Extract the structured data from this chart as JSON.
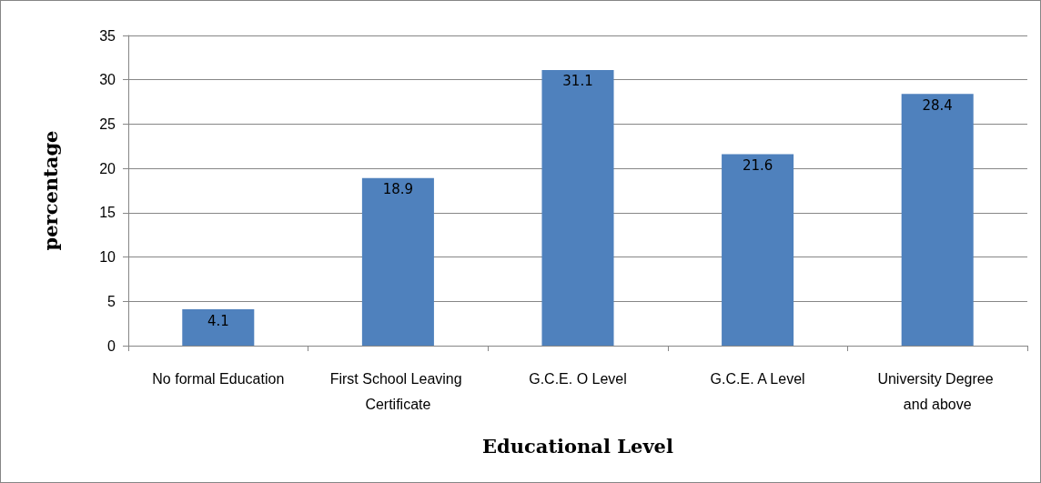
{
  "chart_data": {
    "type": "bar",
    "xlabel": "Educational Level",
    "ylabel": "percentage",
    "categories": [
      "No formal Education",
      "First School Leaving Certificate",
      "G.C.E. O Level",
      "G.C.E. A Level",
      "University Degree and above"
    ],
    "values": [
      4.1,
      18.9,
      31.1,
      21.6,
      28.4
    ],
    "color": "#4f81bd",
    "data_labels": true,
    "ylim": [
      0,
      35
    ],
    "yticks": [
      0,
      5,
      10,
      15,
      20,
      25,
      30,
      35
    ],
    "grid": "y"
  }
}
